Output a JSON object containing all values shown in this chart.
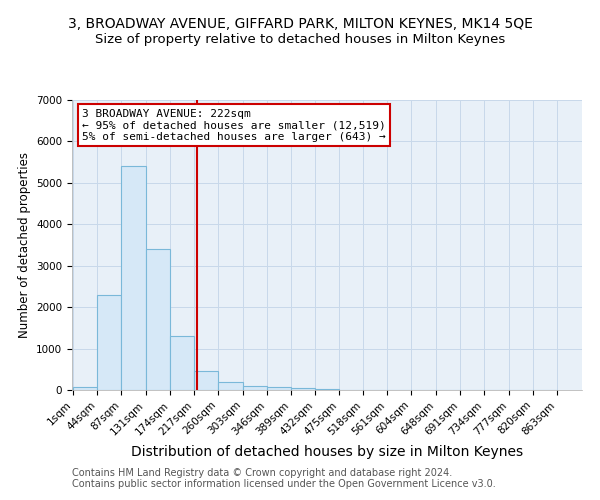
{
  "title": "3, BROADWAY AVENUE, GIFFARD PARK, MILTON KEYNES, MK14 5QE",
  "subtitle": "Size of property relative to detached houses in Milton Keynes",
  "xlabel": "Distribution of detached houses by size in Milton Keynes",
  "ylabel": "Number of detached properties",
  "footnote1": "Contains HM Land Registry data © Crown copyright and database right 2024.",
  "footnote2": "Contains public sector information licensed under the Open Government Licence v3.0.",
  "bins": [
    1,
    44,
    87,
    131,
    174,
    217,
    260,
    303,
    346,
    389,
    432,
    475,
    518,
    561,
    604,
    648,
    691,
    734,
    777,
    820,
    863
  ],
  "counts": [
    75,
    2300,
    5400,
    3400,
    1300,
    450,
    190,
    100,
    75,
    50,
    30,
    0,
    0,
    0,
    0,
    0,
    0,
    0,
    0,
    0
  ],
  "bar_facecolor": "#d6e8f7",
  "bar_edgecolor": "#7ab8d9",
  "property_line_x": 222,
  "property_line_color": "#cc0000",
  "annotation_text": "3 BROADWAY AVENUE: 222sqm\n← 95% of detached houses are smaller (12,519)\n5% of semi-detached houses are larger (643) →",
  "annotation_box_color": "#cc0000",
  "ylim": [
    0,
    7000
  ],
  "grid_color": "#c8d8ea",
  "plot_bg_color": "#e8f0f8",
  "fig_bg_color": "#ffffff",
  "title_fontsize": 10,
  "subtitle_fontsize": 9.5,
  "xlabel_fontsize": 10,
  "ylabel_fontsize": 8.5,
  "annotation_fontsize": 8,
  "tick_fontsize": 7.5,
  "footnote_fontsize": 7
}
